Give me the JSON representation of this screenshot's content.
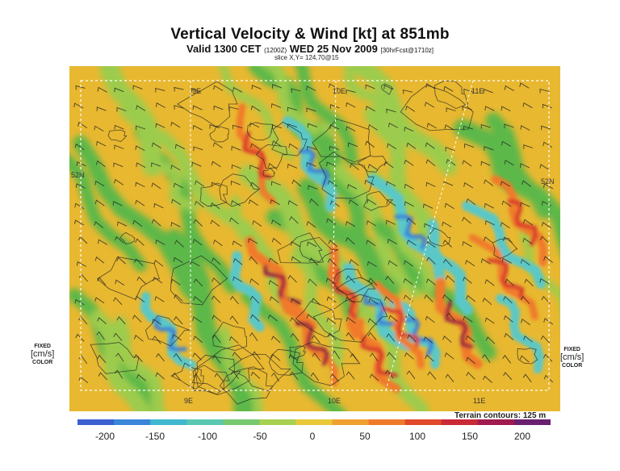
{
  "title": "Vertical Velocity & Wind [kt] at 851mb",
  "subtitle": {
    "prefix": "Valid 1300 CET",
    "utc": "(1200Z)",
    "date": "WED 25 Nov 2009",
    "forecast": "[30hrFcst@1710z]"
  },
  "slice_label": "slice X,Y= 124,70@15",
  "map": {
    "lon_labels_top": [
      "9E",
      "10E",
      "11E"
    ],
    "lon_labels_bottom": [
      "9E",
      "10E",
      "11E"
    ],
    "lat_label_left": "52N",
    "lat_label_right": "52N",
    "field_colors": {
      "background": "#e8b830",
      "green": "#5cb84a",
      "light_green": "#9ccc4e",
      "cyan": "#5ac8c8",
      "blue": "#3a7ed8",
      "red": "#d8342a",
      "dark_red": "#9a1a3a",
      "orange": "#f07a2a"
    },
    "features": [
      "wind-barbs",
      "terrain-contours",
      "vertical-velocity-shading"
    ]
  },
  "side_labels": {
    "left": {
      "fixed": "FIXED",
      "unit": "[cm/s]",
      "color": "COLOR"
    },
    "right": {
      "fixed": "FIXED",
      "unit": "[cm/s]",
      "color": "COLOR"
    }
  },
  "terrain_contours": "Terrain contours: 125 m",
  "colorbar": {
    "ticks": [
      "-200",
      "-150",
      "-100",
      "-50",
      "0",
      "50",
      "100",
      "150",
      "200"
    ],
    "colors": [
      "#3a5fd0",
      "#3a86d8",
      "#40b8d0",
      "#5ac8b0",
      "#78c870",
      "#a8d050",
      "#e8c838",
      "#f0a030",
      "#ee7a2a",
      "#e04a2a",
      "#c82a38",
      "#a01a50",
      "#6a2070"
    ]
  }
}
